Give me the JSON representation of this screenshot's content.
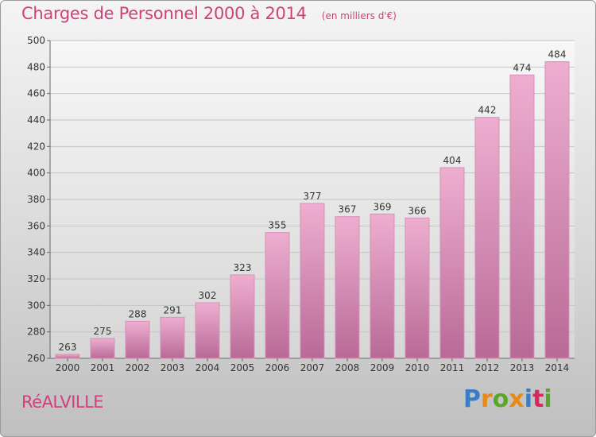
{
  "header": {
    "title": "Charges de Personnel 2000 à 2014",
    "subtitle": "(en milliers d'€)"
  },
  "footer": {
    "commune": "RéALVILLE",
    "logo_text": "Proxiti"
  },
  "colors": {
    "bar_top": "#eeaed0",
    "bar_bottom": "#b86a96",
    "title": "#d0407a",
    "logo_letters": [
      "#3b7dc4",
      "#e88a1a",
      "#5aa62a",
      "#e88a1a",
      "#3b7dc4",
      "#d6285a",
      "#5aa62a"
    ]
  },
  "chart_data": {
    "type": "bar",
    "title": "Charges de Personnel 2000 à 2014",
    "subtitle": "(en milliers d'€)",
    "categories": [
      "2000",
      "2001",
      "2002",
      "2003",
      "2004",
      "2005",
      "2006",
      "2007",
      "2008",
      "2009",
      "2010",
      "2011",
      "2012",
      "2013",
      "2014"
    ],
    "values": [
      263,
      275,
      288,
      291,
      302,
      323,
      355,
      377,
      367,
      369,
      366,
      404,
      442,
      474,
      484
    ],
    "ylim": [
      260,
      500
    ],
    "yticks": [
      260,
      280,
      300,
      320,
      340,
      360,
      380,
      400,
      420,
      440,
      460,
      480,
      500
    ],
    "grid": true,
    "xlabel": "",
    "ylabel": ""
  }
}
